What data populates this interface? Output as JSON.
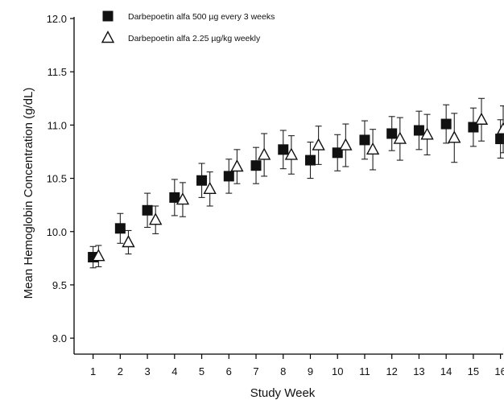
{
  "chart_data": {
    "type": "scatter",
    "xlabel": "Study Week",
    "ylabel": "Mean Hemoglobin Concentration (g/dL)",
    "xlim": [
      0.3,
      16.1
    ],
    "ylim": [
      8.85,
      12.0
    ],
    "x_ticks": [
      1,
      2,
      3,
      4,
      5,
      6,
      7,
      8,
      9,
      10,
      11,
      12,
      13,
      14,
      15,
      16
    ],
    "y_ticks": [
      9.0,
      9.5,
      10.0,
      10.5,
      11.0,
      11.5,
      12.0
    ],
    "y_tick_labels": [
      "9.0",
      "9.5",
      "10.0",
      "10.5",
      "11.0",
      "11.5",
      "12.0"
    ],
    "grid": false,
    "legend_position": "top-left",
    "error_bars": true,
    "series": [
      {
        "name": "Darbepoetin alfa 500 µg every 3 weeks",
        "marker": "filled-square",
        "x": [
          1,
          2,
          3,
          4,
          5,
          6,
          7,
          8,
          9,
          10,
          11,
          12,
          13,
          14,
          15,
          16
        ],
        "y": [
          9.76,
          10.03,
          10.2,
          10.32,
          10.48,
          10.52,
          10.62,
          10.77,
          10.67,
          10.74,
          10.86,
          10.92,
          10.95,
          11.01,
          10.98,
          10.87
        ],
        "yerr": [
          0.1,
          0.14,
          0.16,
          0.17,
          0.16,
          0.16,
          0.17,
          0.18,
          0.17,
          0.17,
          0.18,
          0.16,
          0.18,
          0.18,
          0.18,
          0.18
        ]
      },
      {
        "name": "Darbepoetin alfa 2.25 µg/kg weekly",
        "marker": "open-triangle",
        "x": [
          1.2,
          2.3,
          3.3,
          4.3,
          5.3,
          6.3,
          7.3,
          8.3,
          9.3,
          10.3,
          11.3,
          12.3,
          13.3,
          14.3,
          15.3,
          16.1
        ],
        "y": [
          9.77,
          9.9,
          10.11,
          10.3,
          10.4,
          10.61,
          10.72,
          10.72,
          10.81,
          10.81,
          10.77,
          10.87,
          10.91,
          10.88,
          11.05,
          10.96
        ],
        "yerr": [
          0.1,
          0.11,
          0.13,
          0.16,
          0.16,
          0.16,
          0.2,
          0.18,
          0.18,
          0.2,
          0.19,
          0.2,
          0.19,
          0.23,
          0.2,
          0.22
        ]
      }
    ]
  }
}
